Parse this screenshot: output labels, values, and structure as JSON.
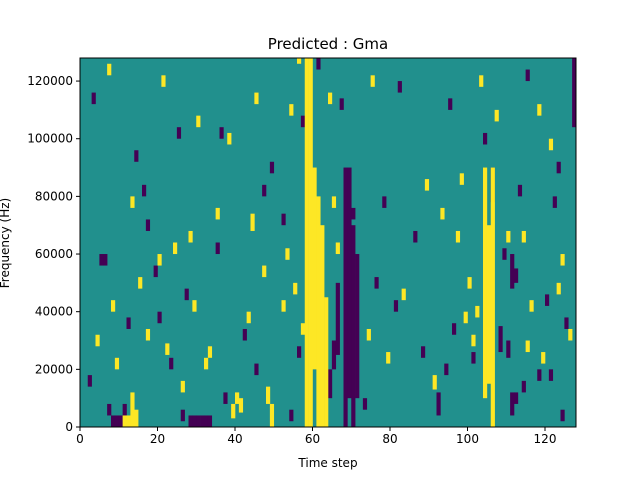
{
  "chart_data": {
    "type": "heatmap",
    "title": "Predicted : Gma",
    "xlabel": "Time step",
    "ylabel": "Frequency (Hz)",
    "xlim": [
      0,
      128
    ],
    "ylim": [
      0,
      128000
    ],
    "x_ticks": [
      0,
      20,
      40,
      60,
      80,
      100,
      120
    ],
    "x_tick_labels": [
      "0",
      "20",
      "40",
      "60",
      "80",
      "100",
      "120"
    ],
    "y_ticks": [
      0,
      20000,
      40000,
      60000,
      80000,
      100000,
      120000
    ],
    "y_tick_labels": [
      "0",
      "20000",
      "40000",
      "60000",
      "80000",
      "100000",
      "120000"
    ],
    "grid": false,
    "legend": "none",
    "colormap": "viridis",
    "colors": {
      "background": "#21908d",
      "low": "#440154",
      "high": "#fde725"
    },
    "cells_high": [
      [
        58,
        0,
        128000
      ],
      [
        59,
        0,
        128000
      ],
      [
        60,
        20000,
        90000
      ],
      [
        61,
        0,
        80000
      ],
      [
        62,
        0,
        70000
      ],
      [
        63,
        0,
        45000
      ],
      [
        104,
        10000,
        90000
      ],
      [
        105,
        15000,
        70000
      ],
      [
        106,
        0,
        90000
      ],
      [
        11,
        0,
        4000
      ],
      [
        12,
        0,
        4000
      ],
      [
        13,
        0,
        12000
      ],
      [
        14,
        0,
        6000
      ],
      [
        39,
        3000,
        8000
      ],
      [
        40,
        8000,
        12000
      ],
      [
        41,
        5000,
        10000
      ],
      [
        48,
        8000,
        14000
      ],
      [
        49,
        0,
        8000
      ],
      [
        20,
        56000,
        60000
      ],
      [
        28,
        64000,
        68000
      ],
      [
        35,
        72000,
        76000
      ],
      [
        44,
        68000,
        74000
      ],
      [
        4,
        28000,
        32000
      ],
      [
        8,
        40000,
        44000
      ],
      [
        15,
        48000,
        52000
      ],
      [
        22,
        25000,
        29000
      ],
      [
        29,
        40000,
        44000
      ],
      [
        33,
        24000,
        28000
      ],
      [
        43,
        36000,
        40000
      ],
      [
        52,
        40000,
        44000
      ],
      [
        55,
        46000,
        50000
      ],
      [
        66,
        60000,
        64000
      ],
      [
        74,
        30000,
        34000
      ],
      [
        83,
        44000,
        48000
      ],
      [
        91,
        13000,
        18000
      ],
      [
        93,
        72000,
        76000
      ],
      [
        99,
        36000,
        40000
      ],
      [
        101,
        28000,
        32000
      ],
      [
        115,
        26000,
        30000
      ],
      [
        118,
        108000,
        112000
      ],
      [
        121,
        96000,
        100000
      ],
      [
        7,
        122000,
        126000
      ],
      [
        13,
        76000,
        80000
      ],
      [
        21,
        118000,
        122000
      ],
      [
        30,
        104000,
        108000
      ],
      [
        38,
        98000,
        102000
      ],
      [
        45,
        112000,
        116000
      ],
      [
        54,
        108000,
        112000
      ],
      [
        56,
        126000,
        128000
      ],
      [
        64,
        112000,
        116000
      ],
      [
        75,
        118000,
        122000
      ],
      [
        89,
        82000,
        86000
      ],
      [
        98,
        84000,
        88000
      ],
      [
        103,
        118000,
        122000
      ],
      [
        107,
        106000,
        110000
      ],
      [
        110,
        64000,
        68000
      ],
      [
        124,
        56000,
        60000
      ],
      [
        9,
        20000,
        24000
      ],
      [
        17,
        30000,
        34000
      ],
      [
        24,
        60000,
        64000
      ],
      [
        26,
        12000,
        16000
      ],
      [
        32,
        20000,
        24000
      ],
      [
        47,
        52000,
        56000
      ],
      [
        53,
        58000,
        62000
      ],
      [
        57,
        32000,
        36000
      ],
      [
        65,
        76000,
        80000
      ],
      [
        79,
        22000,
        26000
      ],
      [
        97,
        64000,
        68000
      ],
      [
        100,
        48000,
        52000
      ],
      [
        102,
        38000,
        42000
      ],
      [
        114,
        64000,
        68000
      ],
      [
        116,
        40000,
        44000
      ],
      [
        119,
        22000,
        26000
      ],
      [
        123,
        46000,
        50000
      ],
      [
        126,
        30000,
        34000
      ]
    ],
    "cells_low": [
      [
        68,
        0,
        90000
      ],
      [
        69,
        10000,
        90000
      ],
      [
        70,
        0,
        70000
      ],
      [
        71,
        10000,
        60000
      ],
      [
        64,
        10000,
        20000
      ],
      [
        65,
        20000,
        30000
      ],
      [
        66,
        25000,
        50000
      ],
      [
        106,
        78000,
        90000
      ],
      [
        108,
        26000,
        35000
      ],
      [
        109,
        58000,
        62000
      ],
      [
        110,
        24000,
        30000
      ],
      [
        111,
        48000,
        60000
      ],
      [
        112,
        50000,
        55000
      ],
      [
        113,
        80000,
        84000
      ],
      [
        7,
        4000,
        8000
      ],
      [
        8,
        0,
        4000
      ],
      [
        9,
        0,
        4000
      ],
      [
        10,
        0,
        4000
      ],
      [
        11,
        4000,
        8000
      ],
      [
        28,
        0,
        4000
      ],
      [
        29,
        0,
        4000
      ],
      [
        30,
        0,
        4000
      ],
      [
        31,
        0,
        4000
      ],
      [
        32,
        0,
        4000
      ],
      [
        33,
        0,
        4000
      ],
      [
        5,
        56000,
        60000
      ],
      [
        6,
        56000,
        60000
      ],
      [
        12,
        34000,
        38000
      ],
      [
        16,
        80000,
        84000
      ],
      [
        17,
        68000,
        72000
      ],
      [
        19,
        52000,
        56000
      ],
      [
        23,
        20000,
        24000
      ],
      [
        27,
        44000,
        48000
      ],
      [
        35,
        60000,
        64000
      ],
      [
        37,
        8000,
        12000
      ],
      [
        42,
        30000,
        34000
      ],
      [
        47,
        80000,
        84000
      ],
      [
        52,
        70000,
        74000
      ],
      [
        56,
        24000,
        28000
      ],
      [
        61,
        124000,
        128000
      ],
      [
        67,
        110000,
        114000
      ],
      [
        76,
        48000,
        52000
      ],
      [
        78,
        76000,
        80000
      ],
      [
        81,
        40000,
        44000
      ],
      [
        86,
        64000,
        68000
      ],
      [
        92,
        4000,
        12000
      ],
      [
        96,
        32000,
        36000
      ],
      [
        101,
        22000,
        26000
      ],
      [
        104,
        98000,
        102000
      ],
      [
        111,
        4000,
        12000
      ],
      [
        114,
        12000,
        16000
      ],
      [
        118,
        16000,
        20000
      ],
      [
        120,
        42000,
        46000
      ],
      [
        122,
        76000,
        80000
      ],
      [
        125,
        34000,
        38000
      ],
      [
        127,
        104000,
        128000
      ],
      [
        3,
        112000,
        116000
      ],
      [
        14,
        92000,
        96000
      ],
      [
        25,
        100000,
        104000
      ],
      [
        36,
        100000,
        104000
      ],
      [
        49,
        88000,
        92000
      ],
      [
        57,
        104000,
        108000
      ],
      [
        70,
        72000,
        76000
      ],
      [
        82,
        116000,
        120000
      ],
      [
        95,
        110000,
        114000
      ],
      [
        115,
        120000,
        124000
      ],
      [
        123,
        88000,
        92000
      ],
      [
        2,
        14000,
        18000
      ],
      [
        20,
        36000,
        40000
      ],
      [
        26,
        2000,
        6000
      ],
      [
        45,
        18000,
        22000
      ],
      [
        54,
        2000,
        6000
      ],
      [
        60,
        40000,
        44000
      ],
      [
        73,
        6000,
        10000
      ],
      [
        88,
        24000,
        28000
      ],
      [
        94,
        18000,
        22000
      ],
      [
        112,
        8000,
        12000
      ],
      [
        121,
        16000,
        20000
      ],
      [
        124,
        2000,
        6000
      ]
    ]
  }
}
